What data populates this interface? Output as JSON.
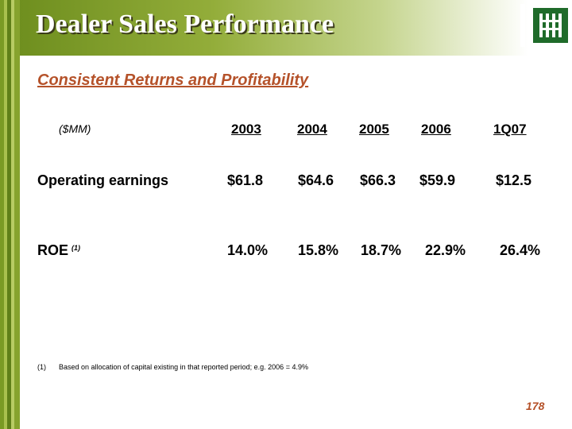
{
  "header": {
    "title": "Dealer Sales Performance"
  },
  "subtitle": "Consistent Returns and Profitability",
  "table": {
    "units_label": "($MM)",
    "columns": [
      "2003",
      "2004",
      "2005",
      "2006",
      "1Q07"
    ],
    "rows": [
      {
        "label": "Operating earnings",
        "footnote_marker": "",
        "values": [
          "$61.8",
          "$64.6",
          "$66.3",
          "$59.9",
          "$12.5"
        ]
      },
      {
        "label": "ROE",
        "footnote_marker": "(1)",
        "values": [
          "14.0%",
          "15.8%",
          "18.7%",
          "22.9%",
          "26.4%"
        ]
      }
    ]
  },
  "footnote": {
    "number": "(1)",
    "text": "Based on allocation of capital existing in that reported period; e.g. 2006 = 4.9%"
  },
  "page_number": "178",
  "colors": {
    "header_green_dark": "#6f8f1f",
    "header_green_light": "#c4d48c",
    "subtitle_accent": "#b5522a",
    "logo_green": "#1f6b2a"
  }
}
